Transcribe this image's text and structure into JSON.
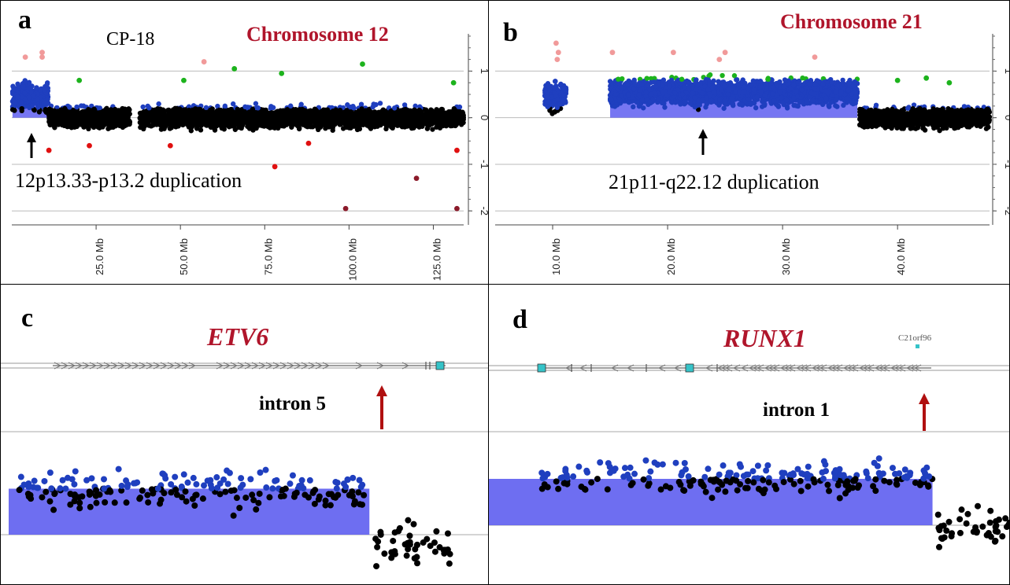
{
  "panels": {
    "a": {
      "letter": "a",
      "sample": "CP-18",
      "chromosome": "Chromosome 12",
      "annotation": "12p13.33-p13.2 duplication"
    },
    "b": {
      "letter": "b",
      "chromosome": "Chromosome 21",
      "annotation": "21p11-q22.12 duplication"
    },
    "c": {
      "letter": "c",
      "gene": "ETV6",
      "intron": "intron 5"
    },
    "d": {
      "letter": "d",
      "gene": "RUNX1",
      "intron": "intron 1",
      "neighbor_gene": "C21orf96"
    }
  },
  "colors": {
    "black_points": "#000000",
    "blue_points": "#1f3fbf",
    "green_points": "#1db31d",
    "pink_points": "#f19a9a",
    "red_points": "#e01010",
    "darkred_points": "#8b1a2a",
    "segment_fill": "#5e5ef0",
    "title_red": "#b0152b",
    "arrow_red": "#b01010"
  },
  "chart_data": [
    {
      "panel": "a",
      "type": "scatter",
      "title": "Chromosome 12",
      "xticks": [
        "25.0 Mb",
        "50.0 Mb",
        "75.0 Mb",
        "100.0 Mb",
        "125.0 Mb"
      ],
      "xtick_values": [
        25,
        50,
        75,
        100,
        125
      ],
      "xlim": [
        0,
        134
      ],
      "yticks": [
        "1",
        "0",
        "-1",
        "-2"
      ],
      "ylim": [
        -2.3,
        1.8
      ],
      "segments": [
        {
          "start": 0.2,
          "end": 10.8,
          "value": 0.55,
          "label": "12p13.33-p13.2 duplication"
        }
      ],
      "bands": [
        {
          "start": 0.2,
          "end": 10.8,
          "center": 0.45,
          "spread": 0.45
        },
        {
          "start": 11,
          "end": 35,
          "center": 0.0,
          "spread": 0.35
        },
        {
          "start": 38,
          "end": 134,
          "center": 0.0,
          "spread": 0.35
        }
      ],
      "outliers": [
        {
          "x": 4,
          "y": 1.3,
          "c": "pink"
        },
        {
          "x": 9,
          "y": 1.4,
          "c": "pink"
        },
        {
          "x": 9,
          "y": 1.3,
          "c": "pink"
        },
        {
          "x": 57,
          "y": 1.2,
          "c": "pink"
        },
        {
          "x": 66,
          "y": 1.05,
          "c": "green"
        },
        {
          "x": 104,
          "y": 1.15,
          "c": "green"
        },
        {
          "x": 20,
          "y": 0.8,
          "c": "green"
        },
        {
          "x": 80,
          "y": 0.95,
          "c": "green"
        },
        {
          "x": 51,
          "y": 0.8,
          "c": "green"
        },
        {
          "x": 131,
          "y": 0.75,
          "c": "green"
        },
        {
          "x": 11,
          "y": -0.7,
          "c": "red"
        },
        {
          "x": 23,
          "y": -0.6,
          "c": "red"
        },
        {
          "x": 47,
          "y": -0.6,
          "c": "red"
        },
        {
          "x": 78,
          "y": -1.05,
          "c": "red"
        },
        {
          "x": 88,
          "y": -0.55,
          "c": "red"
        },
        {
          "x": 132,
          "y": -0.7,
          "c": "red"
        },
        {
          "x": 120,
          "y": -1.3,
          "c": "darkred"
        },
        {
          "x": 99,
          "y": -1.95,
          "c": "darkred"
        },
        {
          "x": 132,
          "y": -1.95,
          "c": "darkred"
        }
      ]
    },
    {
      "panel": "b",
      "type": "scatter",
      "title": "Chromosome 21",
      "xticks": [
        "10.0 Mb",
        "20.0 Mb",
        "30.0 Mb",
        "40.0 Mb"
      ],
      "xtick_values": [
        10,
        20,
        30,
        40
      ],
      "xlim": [
        5,
        48
      ],
      "yticks": [
        "1",
        "0",
        "-1",
        "-2"
      ],
      "ylim": [
        -2.3,
        1.8
      ],
      "segments": [
        {
          "start": 15,
          "end": 36.5,
          "value": 0.55,
          "label": "21p11-q22.12 duplication"
        }
      ],
      "bands": [
        {
          "start": 9.3,
          "end": 11.2,
          "center": 0.45,
          "spread": 0.5
        },
        {
          "start": 15,
          "end": 36.5,
          "center": 0.55,
          "spread": 0.45
        },
        {
          "start": 36.7,
          "end": 48,
          "center": 0.0,
          "spread": 0.35
        }
      ],
      "outliers": [
        {
          "x": 10.3,
          "y": 1.6,
          "c": "pink"
        },
        {
          "x": 10.5,
          "y": 1.4,
          "c": "pink"
        },
        {
          "x": 10.4,
          "y": 1.25,
          "c": "pink"
        },
        {
          "x": 15.2,
          "y": 1.4,
          "c": "pink"
        },
        {
          "x": 20.5,
          "y": 1.4,
          "c": "pink"
        },
        {
          "x": 25.0,
          "y": 1.4,
          "c": "pink"
        },
        {
          "x": 32.8,
          "y": 1.3,
          "c": "pink"
        },
        {
          "x": 24.5,
          "y": 1.25,
          "c": "pink"
        },
        {
          "x": 40.0,
          "y": 0.8,
          "c": "green"
        },
        {
          "x": 42.5,
          "y": 0.85,
          "c": "green"
        },
        {
          "x": 44.5,
          "y": 0.75,
          "c": "green"
        }
      ]
    },
    {
      "panel": "c",
      "type": "scatter",
      "title": "ETV6",
      "intron_label": "intron 5",
      "segments": [
        {
          "start": 0.0,
          "end": 0.75,
          "value": 0.45
        }
      ],
      "bands": [
        {
          "start": 0.02,
          "end": 0.75,
          "center": 0.45,
          "spread": 0.3
        },
        {
          "start": 0.76,
          "end": 0.92,
          "center": -0.1,
          "spread": 0.35
        }
      ]
    },
    {
      "panel": "d",
      "type": "scatter",
      "title": "RUNX1",
      "intron_label": "intron 1",
      "segments": [
        {
          "start": 0.0,
          "end": 0.85,
          "value": 0.5
        }
      ],
      "bands": [
        {
          "start": 0.1,
          "end": 0.85,
          "center": 0.5,
          "spread": 0.3
        },
        {
          "start": 0.86,
          "end": 1.0,
          "center": 0.0,
          "spread": 0.3
        }
      ]
    }
  ]
}
